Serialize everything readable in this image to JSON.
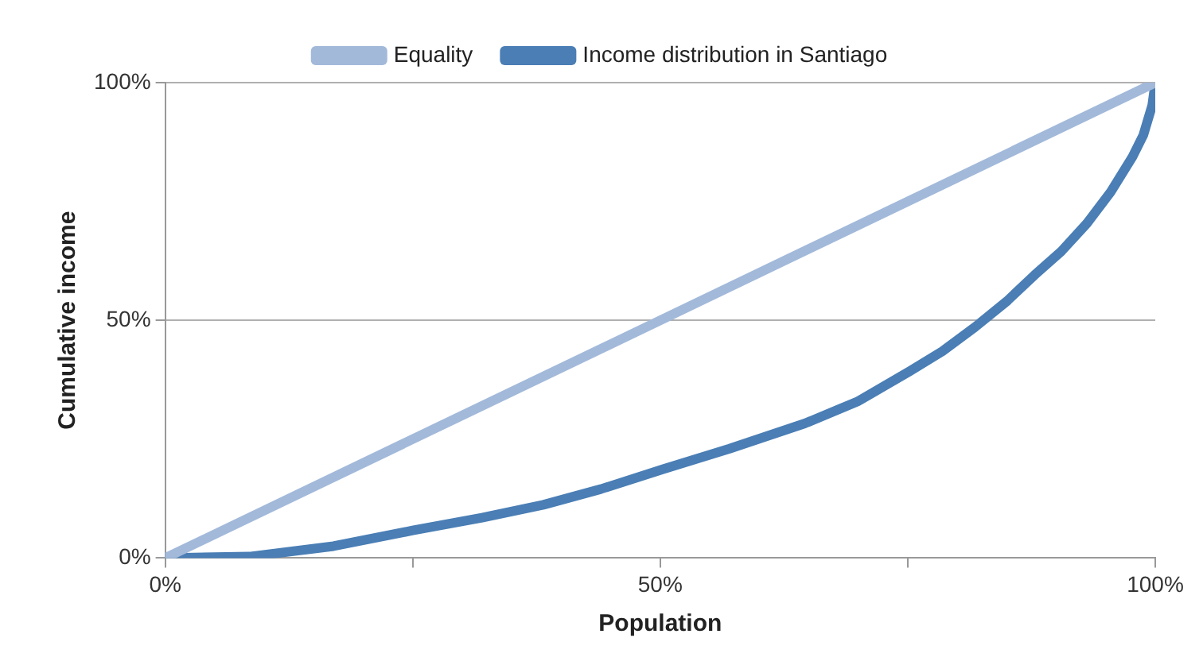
{
  "chart_data": {
    "type": "line",
    "xlabel": "Population",
    "ylabel": "Cumulative income",
    "xlim": [
      0,
      100
    ],
    "ylim": [
      0,
      100
    ],
    "xticks": [
      {
        "value": 0,
        "label": "0%"
      },
      {
        "value": 25,
        "label": null
      },
      {
        "value": 50,
        "label": "50%"
      },
      {
        "value": 75,
        "label": null
      },
      {
        "value": 100,
        "label": "100%"
      }
    ],
    "yticks": [
      {
        "value": 0,
        "label": "0%"
      },
      {
        "value": 50,
        "label": "50%"
      },
      {
        "value": 100,
        "label": "100%"
      }
    ],
    "grid": "y",
    "legend": "top",
    "marker": "none",
    "line_style": "solid",
    "series": [
      {
        "name": "Equality",
        "color": "#a2b9da",
        "x": [
          0,
          100
        ],
        "values": [
          0,
          100
        ]
      },
      {
        "name": "Income distribution in Santiago",
        "color": "#4a7eb5",
        "x": [
          0,
          8.5,
          17,
          25,
          32,
          38.2,
          44,
          50.3,
          57,
          64.6,
          70,
          75.2,
          78.5,
          81.8,
          85,
          87.8,
          90.5,
          93.1,
          95.5,
          97.7,
          98.8,
          99.7,
          100
        ],
        "values": [
          0,
          0.3,
          2.5,
          5.8,
          8.5,
          11.2,
          14.5,
          18.7,
          23,
          28.3,
          33,
          39.3,
          43.5,
          48.6,
          54,
          59.5,
          64.5,
          70.4,
          77,
          84.4,
          89,
          95.3,
          100
        ]
      }
    ]
  }
}
